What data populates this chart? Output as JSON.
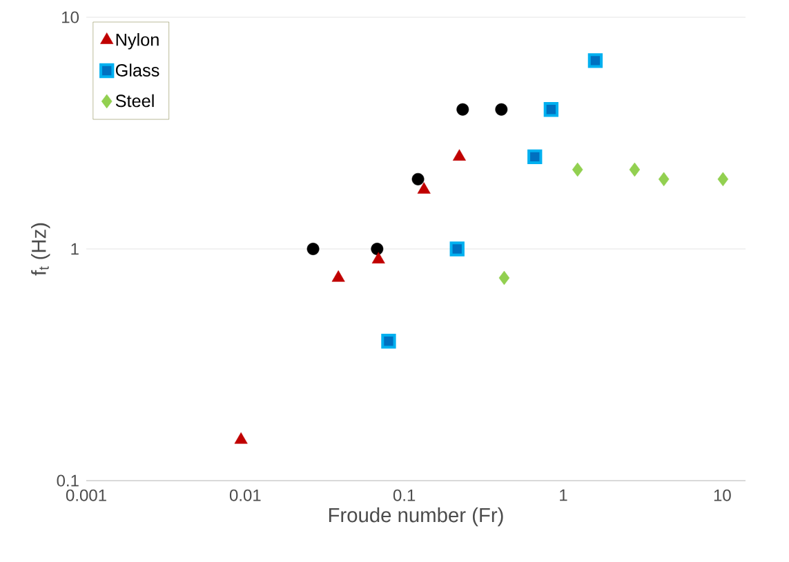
{
  "chart_data": {
    "type": "scatter",
    "xlabel": "Froude number (Fr)",
    "ylabel": "f$_{t}$ (Hz)",
    "log": "xy",
    "grid": "y",
    "legend": "top left",
    "xlim": [
      0.001,
      14
    ],
    "xticks": [
      0.001,
      0.01,
      0.1,
      1,
      10
    ],
    "ylim": [
      0.1,
      10
    ],
    "yticks": [
      0.1,
      1,
      10
    ],
    "series": [
      {
        "color": "#000000",
        "marker": "circle",
        "x": [
          0.0267,
          0.0675,
          0.122,
          0.233,
          0.408
        ],
        "values": [
          1,
          1,
          2,
          4,
          4
        ]
      },
      {
        "name": "Nylon",
        "color": "#c00000",
        "marker": "triangle",
        "x": [
          0.0094,
          0.0385,
          0.0688,
          0.133,
          0.222
        ],
        "values": [
          0.15,
          0.75,
          0.9,
          1.8,
          2.5
        ]
      },
      {
        "name": "Glass",
        "color": "#00b0f0",
        "marker": "square",
        "x": [
          0.0797,
          0.215,
          0.662,
          0.838,
          1.59
        ],
        "values": [
          0.4,
          1,
          2.5,
          4,
          6.5
        ]
      },
      {
        "name": "Steel",
        "color": "#92d050",
        "marker": "diamond",
        "x": [
          0.425,
          1.23,
          2.81,
          4.29,
          10.1
        ],
        "values": [
          0.75,
          2.2,
          2.2,
          2,
          2
        ]
      }
    ]
  }
}
